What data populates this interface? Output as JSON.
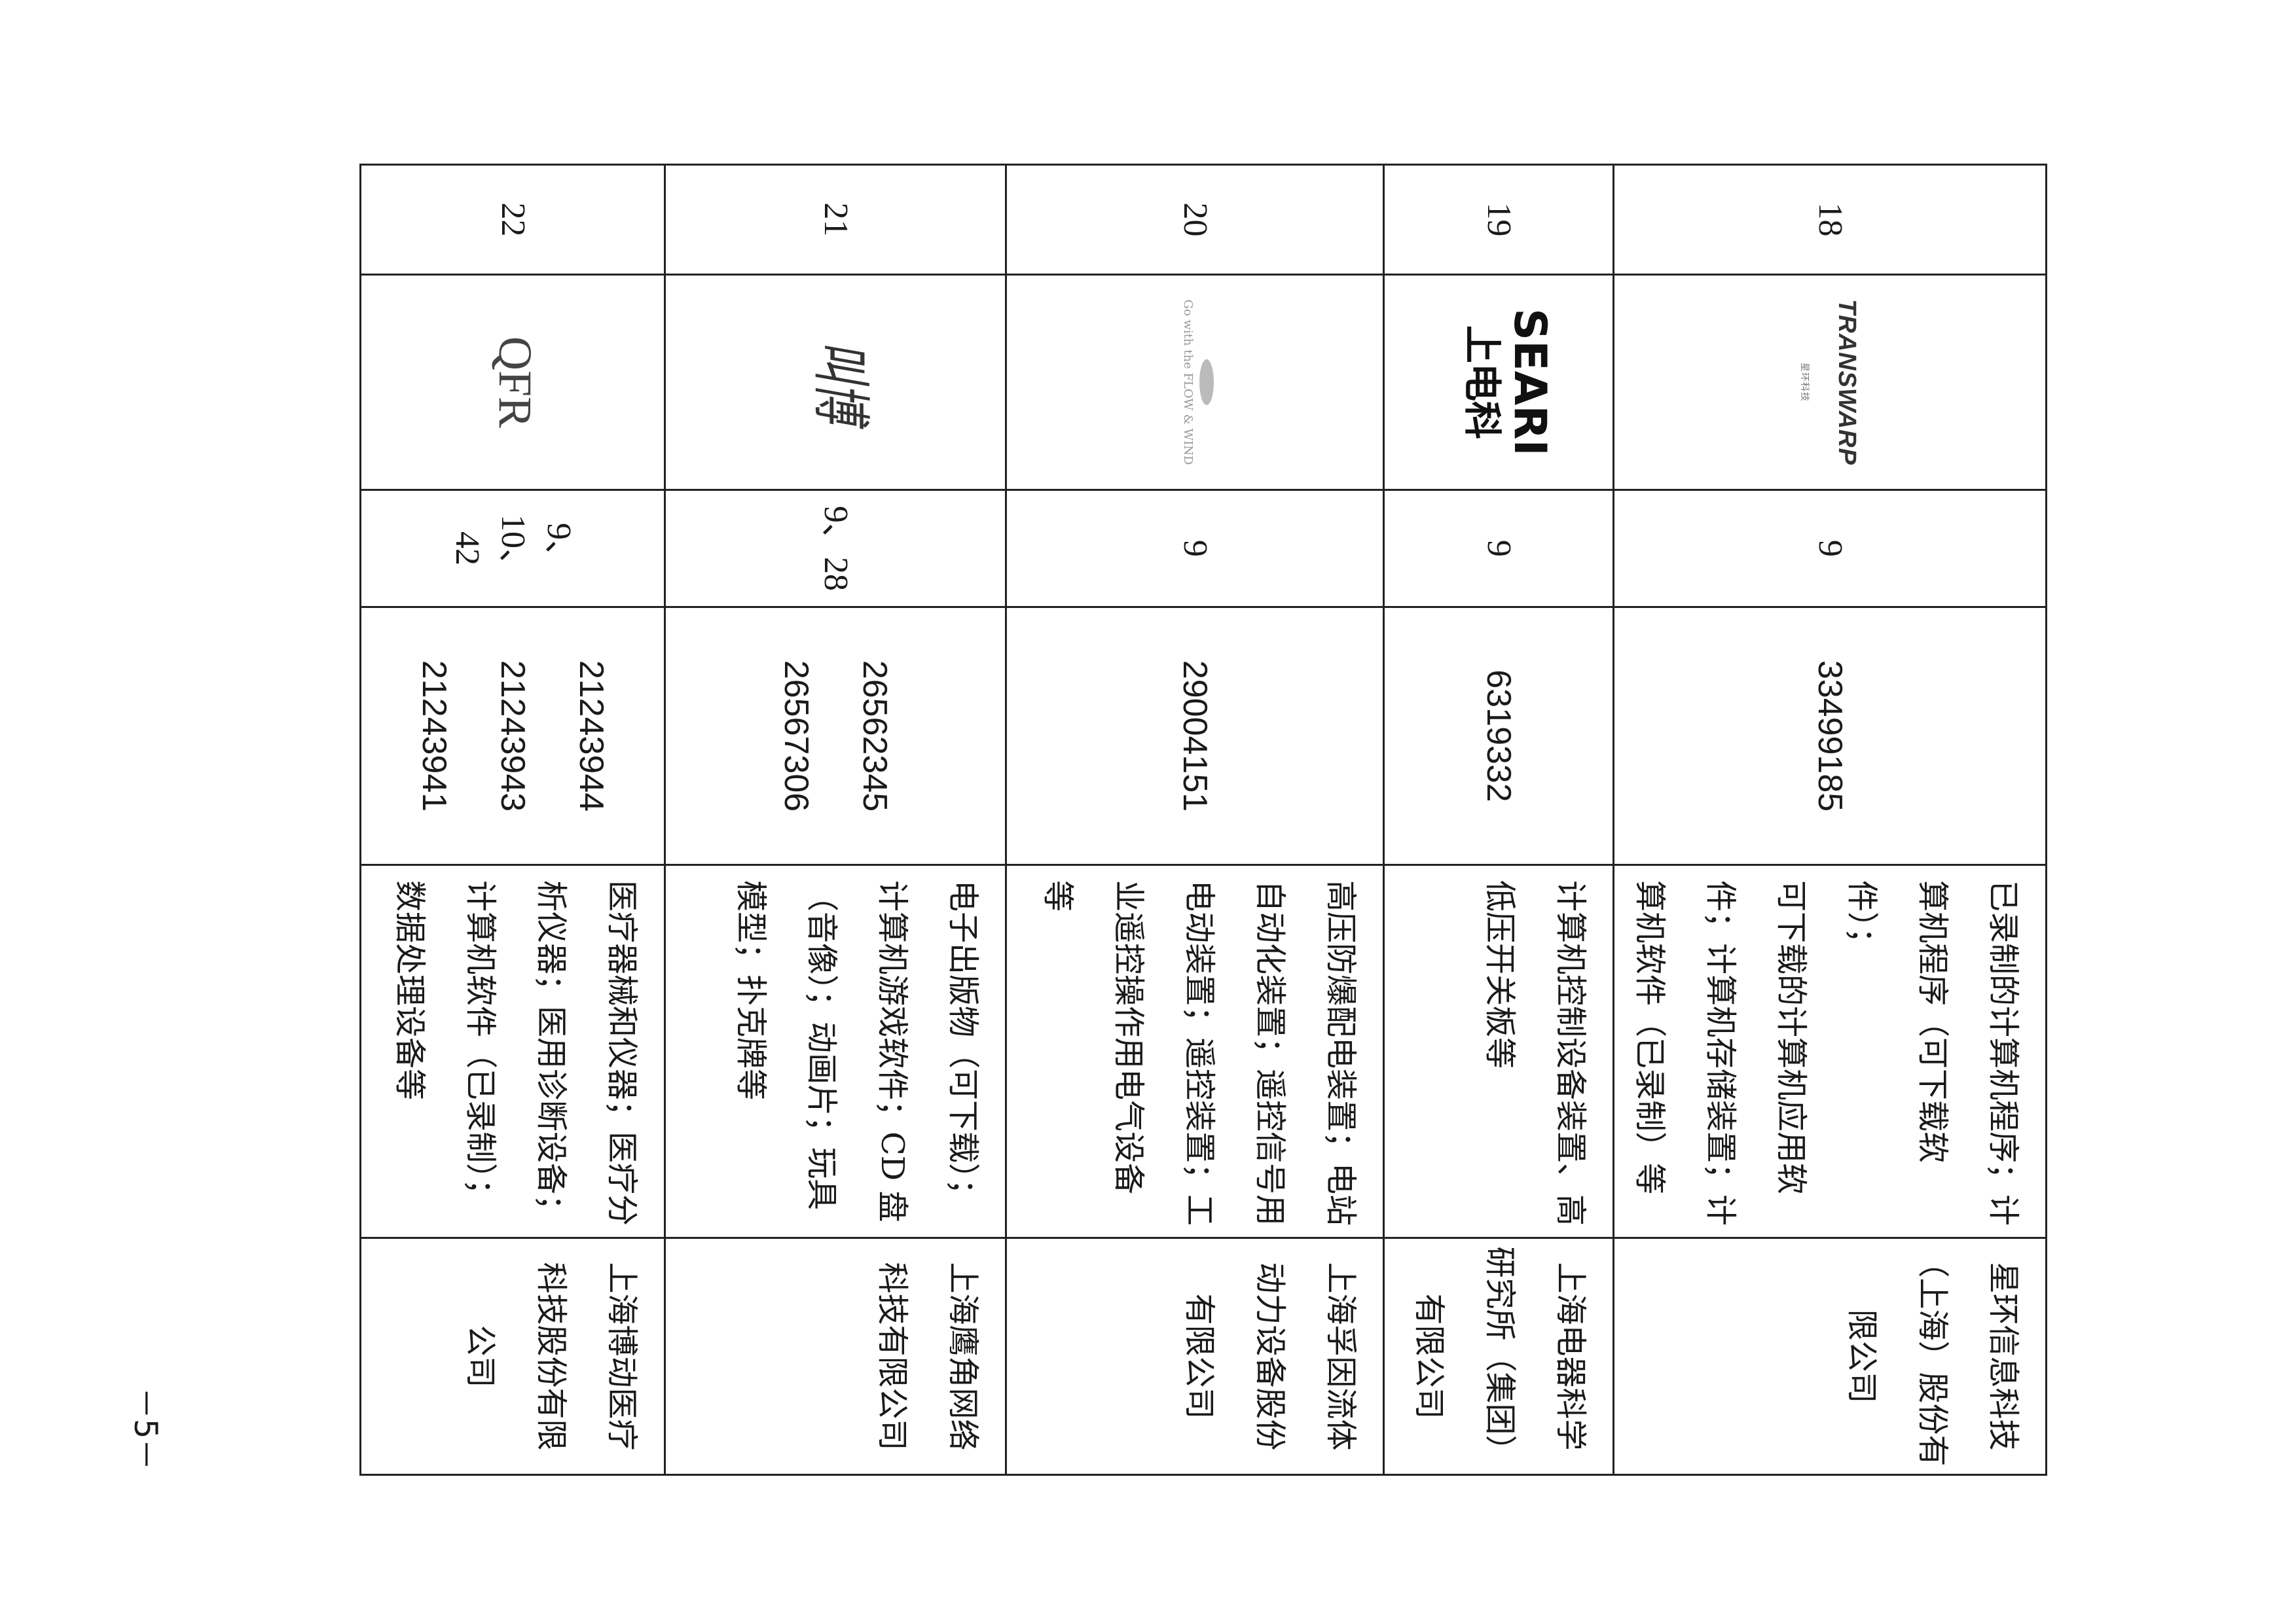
{
  "rows": [
    {
      "no": "18",
      "logo": "TRANSWARP",
      "logo_sub": "星环科技",
      "classes": "9",
      "reg": "33499185",
      "goods": "已录制的计算机程序；计\n算机程序（可下载软件）；\n可下载的计算机应用软\n件；计算机存储装置；计\n算机软件（已录制）等",
      "company": "星环信息科技\n（上海）股份有\n限公司"
    },
    {
      "no": "19",
      "logo": "SEARI",
      "logo_sub": "上电科",
      "classes": "9",
      "reg": "6319332",
      "goods": "计算机控制设备装置、高\n低压开关板等",
      "company": "上海电器科学\n研究所（集团）\n有限公司"
    },
    {
      "no": "20",
      "logo": "Go with the FLOW & WIND",
      "logo_sub": "",
      "classes": "9",
      "reg": "29004151",
      "goods": "高压防爆配电装置；电站\n自动化装置；遥控信号用\n电动装置；遥控装置；工\n业遥控操作用电气设备\n等",
      "company": "上海孚因流体\n动力设备股份\n有限公司"
    },
    {
      "no": "21",
      "logo": "叫博",
      "logo_sub": "",
      "classes": "9、28",
      "reg": "26562345\n26567306",
      "goods": "电子出版物（可下载）；\n计算机游戏软件；CD 盘\n（音像）；动画片；玩具\n模型；扑克牌等",
      "company": "上海鹰角网络\n科技有限公司"
    },
    {
      "no": "22",
      "logo": "QFR",
      "logo_sub": "",
      "classes": "9、10、\n42",
      "reg": "21243944\n21243943\n21243941",
      "goods": "医疗器械和仪器；医疗分\n析仪器；医用诊断设备；\n计算机软件（已录制）；\n数据处理设备等",
      "company": "上海博动医疗\n科技股份有限\n公司"
    }
  ],
  "page_number": "－5－"
}
